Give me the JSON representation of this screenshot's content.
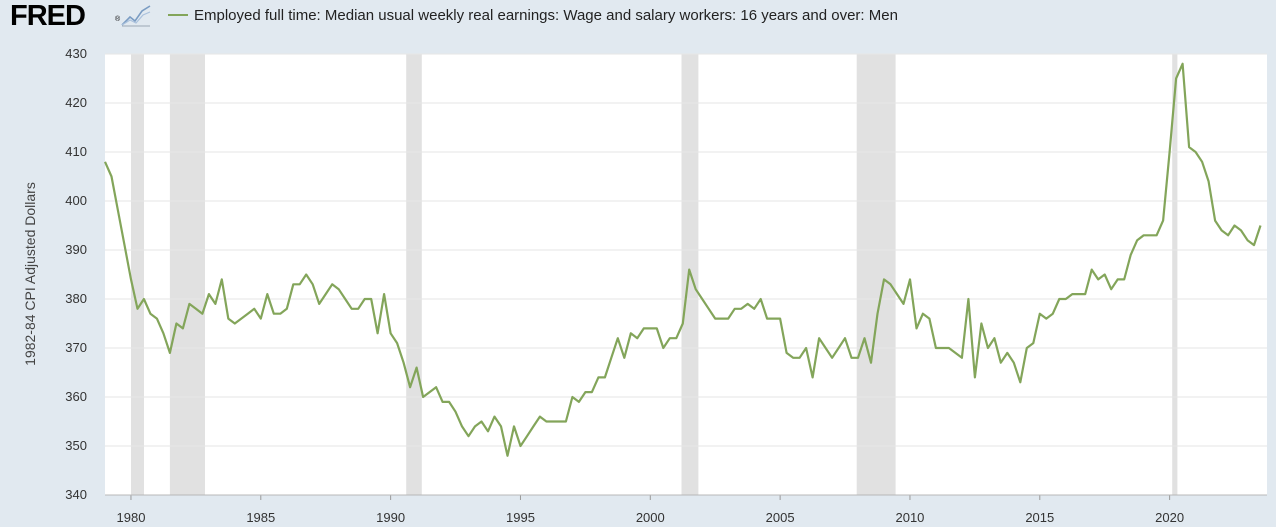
{
  "header": {
    "logo_text": "FRED",
    "logo_reg": "®",
    "logo_icon": "line-chart-icon",
    "series_label": "Employed full time: Median usual weekly real earnings: Wage and salary workers: 16 years and over: Men"
  },
  "chart_data": {
    "type": "line",
    "title": "",
    "xlabel": "",
    "ylabel": "1982-84 CPI Adjusted Dollars",
    "xlim": [
      1979.0,
      2023.75
    ],
    "ylim": [
      340,
      430
    ],
    "y_ticks": [
      340,
      350,
      360,
      370,
      380,
      390,
      400,
      410,
      420,
      430
    ],
    "x_ticks": [
      1980,
      1985,
      1990,
      1995,
      2000,
      2005,
      2010,
      2015,
      2020
    ],
    "grid": true,
    "legend": "top-left",
    "colors": {
      "line": "#83a55a",
      "recession": "#e1e1e1",
      "grid": "#e6e6e6"
    },
    "recessions": [
      [
        1980.0,
        1980.5
      ],
      [
        1981.5,
        1982.85
      ],
      [
        1990.6,
        1991.2
      ],
      [
        2001.2,
        2001.85
      ],
      [
        2007.95,
        2009.45
      ],
      [
        2020.1,
        2020.3
      ]
    ],
    "series": [
      {
        "name": "Employed full time: Median usual weekly real earnings: Wage and salary workers: 16 years and over: Men",
        "x": [
          1979.0,
          1979.25,
          1979.5,
          1979.75,
          1980.0,
          1980.25,
          1980.5,
          1980.75,
          1981.0,
          1981.25,
          1981.5,
          1981.75,
          1982.0,
          1982.25,
          1982.5,
          1982.75,
          1983.0,
          1983.25,
          1983.5,
          1983.75,
          1984.0,
          1984.25,
          1984.5,
          1984.75,
          1985.0,
          1985.25,
          1985.5,
          1985.75,
          1986.0,
          1986.25,
          1986.5,
          1986.75,
          1987.0,
          1987.25,
          1987.5,
          1987.75,
          1988.0,
          1988.25,
          1988.5,
          1988.75,
          1989.0,
          1989.25,
          1989.5,
          1989.75,
          1990.0,
          1990.25,
          1990.5,
          1990.75,
          1991.0,
          1991.25,
          1991.5,
          1991.75,
          1992.0,
          1992.25,
          1992.5,
          1992.75,
          1993.0,
          1993.25,
          1993.5,
          1993.75,
          1994.0,
          1994.25,
          1994.5,
          1994.75,
          1995.0,
          1995.25,
          1995.5,
          1995.75,
          1996.0,
          1996.25,
          1996.5,
          1996.75,
          1997.0,
          1997.25,
          1997.5,
          1997.75,
          1998.0,
          1998.25,
          1998.5,
          1998.75,
          1999.0,
          1999.25,
          1999.5,
          1999.75,
          2000.0,
          2000.25,
          2000.5,
          2000.75,
          2001.0,
          2001.25,
          2001.5,
          2001.75,
          2002.0,
          2002.25,
          2002.5,
          2002.75,
          2003.0,
          2003.25,
          2003.5,
          2003.75,
          2004.0,
          2004.25,
          2004.5,
          2004.75,
          2005.0,
          2005.25,
          2005.5,
          2005.75,
          2006.0,
          2006.25,
          2006.5,
          2006.75,
          2007.0,
          2007.25,
          2007.5,
          2007.75,
          2008.0,
          2008.25,
          2008.5,
          2008.75,
          2009.0,
          2009.25,
          2009.5,
          2009.75,
          2010.0,
          2010.25,
          2010.5,
          2010.75,
          2011.0,
          2011.25,
          2011.5,
          2011.75,
          2012.0,
          2012.25,
          2012.5,
          2012.75,
          2013.0,
          2013.25,
          2013.5,
          2013.75,
          2014.0,
          2014.25,
          2014.5,
          2014.75,
          2015.0,
          2015.25,
          2015.5,
          2015.75,
          2016.0,
          2016.25,
          2016.5,
          2016.75,
          2017.0,
          2017.25,
          2017.5,
          2017.75,
          2018.0,
          2018.25,
          2018.5,
          2018.75,
          2019.0,
          2019.25,
          2019.5,
          2019.75,
          2020.0,
          2020.25,
          2020.5,
          2020.75,
          2021.0,
          2021.25,
          2021.5,
          2021.75,
          2022.0,
          2022.25,
          2022.5,
          2022.75,
          2023.0,
          2023.25,
          2023.5
        ],
        "y": [
          408,
          405,
          398,
          391,
          384,
          378,
          380,
          377,
          376,
          373,
          369,
          375,
          374,
          379,
          378,
          377,
          381,
          379,
          384,
          376,
          375,
          376,
          377,
          378,
          376,
          381,
          377,
          377,
          378,
          383,
          383,
          385,
          383,
          379,
          381,
          383,
          382,
          380,
          378,
          378,
          380,
          380,
          373,
          381,
          373,
          371,
          367,
          362,
          366,
          360,
          361,
          362,
          359,
          359,
          357,
          354,
          352,
          354,
          355,
          353,
          356,
          354,
          348,
          354,
          350,
          352,
          354,
          356,
          355,
          355,
          355,
          355,
          360,
          359,
          361,
          361,
          364,
          364,
          368,
          372,
          368,
          373,
          372,
          374,
          374,
          374,
          370,
          372,
          372,
          375,
          386,
          382,
          380,
          378,
          376,
          376,
          376,
          378,
          378,
          379,
          378,
          380,
          376,
          376,
          376,
          369,
          368,
          368,
          370,
          364,
          372,
          370,
          368,
          370,
          372,
          368,
          368,
          372,
          367,
          377,
          384,
          383,
          381,
          379,
          384,
          374,
          377,
          376,
          370,
          370,
          370,
          369,
          368,
          380,
          364,
          375,
          370,
          372,
          367,
          369,
          367,
          363,
          370,
          371,
          377,
          376,
          377,
          380,
          380,
          381,
          381,
          381,
          386,
          384,
          385,
          382,
          384,
          384,
          389,
          392,
          393,
          393,
          393,
          396,
          410,
          425,
          428,
          411,
          410,
          408,
          404,
          396,
          394,
          393,
          395,
          394,
          392,
          391,
          395
        ]
      }
    ]
  }
}
